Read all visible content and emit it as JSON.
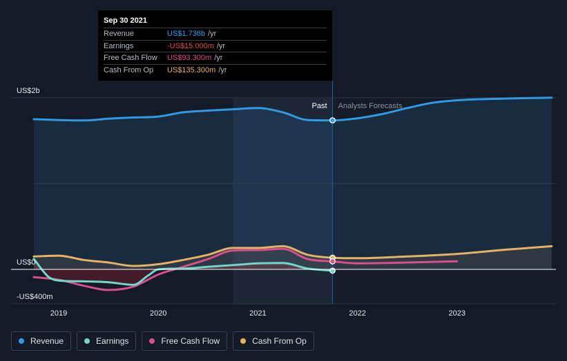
{
  "tooltip": {
    "date": "Sep 30 2021",
    "rows": [
      {
        "label": "Revenue",
        "value": "US$1.736b",
        "unit": "/yr",
        "color": "#2f9be6"
      },
      {
        "label": "Earnings",
        "value": "-US$15.000m",
        "unit": "/yr",
        "color": "#e24c4c"
      },
      {
        "label": "Free Cash Flow",
        "value": "US$93.300m",
        "unit": "/yr",
        "color": "#d84f8b"
      },
      {
        "label": "Cash From Op",
        "value": "US$135.300m",
        "unit": "/yr",
        "color": "#e8b164"
      }
    ]
  },
  "labels": {
    "past": "Past",
    "forecast": "Analysts Forecasts"
  },
  "legend": [
    {
      "label": "Revenue",
      "color": "#2f9be6"
    },
    {
      "label": "Earnings",
      "color": "#6fd8c9"
    },
    {
      "label": "Free Cash Flow",
      "color": "#d84f8b"
    },
    {
      "label": "Cash From Op",
      "color": "#e8b164"
    }
  ],
  "chart_data": {
    "type": "line",
    "title": "",
    "xlabel": "",
    "ylabel": "",
    "y_unit": "US$ millions",
    "xlim": [
      2018.75,
      2023.95
    ],
    "ylim": [
      -400,
      2000
    ],
    "y_ticks": [
      {
        "value": 2000,
        "label": "US$2b"
      },
      {
        "value": 0,
        "label": "US$0"
      },
      {
        "value": -400,
        "label": "-US$400m"
      }
    ],
    "x_ticks": [
      {
        "value": 2019,
        "label": "2019"
      },
      {
        "value": 2020,
        "label": "2020"
      },
      {
        "value": 2021,
        "label": "2021"
      },
      {
        "value": 2022,
        "label": "2022"
      },
      {
        "value": 2023,
        "label": "2023"
      }
    ],
    "past_end": 2021.75,
    "highlight_range": [
      2020.75,
      2021.75
    ],
    "series": [
      {
        "name": "Revenue",
        "color": "#2f9be6",
        "fill": true,
        "x": [
          2018.75,
          2019.0,
          2019.25,
          2019.5,
          2019.75,
          2020.0,
          2020.25,
          2020.5,
          2020.75,
          2021.0,
          2021.25,
          2021.5,
          2021.75,
          2022.0,
          2022.25,
          2022.5,
          2022.75,
          2023.0,
          2023.5,
          2023.95
        ],
        "values": [
          1750,
          1740,
          1735,
          1755,
          1770,
          1780,
          1830,
          1850,
          1865,
          1880,
          1830,
          1740,
          1736,
          1760,
          1810,
          1880,
          1940,
          1970,
          1990,
          2000
        ]
      },
      {
        "name": "Cash From Op",
        "color": "#e8b164",
        "fill": true,
        "x": [
          2018.75,
          2019.0,
          2019.25,
          2019.5,
          2019.75,
          2020.0,
          2020.25,
          2020.5,
          2020.75,
          2021.0,
          2021.25,
          2021.5,
          2021.75,
          2022.0,
          2022.5,
          2023.0,
          2023.5,
          2023.95
        ],
        "values": [
          150,
          160,
          110,
          80,
          40,
          60,
          110,
          170,
          250,
          250,
          270,
          170,
          135.3,
          130,
          150,
          180,
          230,
          270
        ]
      },
      {
        "name": "Free Cash Flow",
        "color": "#d84f8b",
        "fill": false,
        "x": [
          2018.75,
          2019.0,
          2019.25,
          2019.5,
          2019.75,
          2020.0,
          2020.25,
          2020.5,
          2020.75,
          2021.0,
          2021.25,
          2021.5,
          2021.75,
          2022.0,
          2022.5,
          2023.0
        ],
        "values": [
          -90,
          -120,
          -190,
          -240,
          -200,
          -60,
          30,
          120,
          220,
          225,
          240,
          120,
          93.3,
          70,
          80,
          95
        ]
      },
      {
        "name": "Earnings",
        "color": "#6fd8c9",
        "fill": false,
        "x": [
          2018.75,
          2018.9,
          2019.0,
          2019.25,
          2019.5,
          2019.75,
          2019.9,
          2020.0,
          2020.25,
          2020.5,
          2020.75,
          2021.0,
          2021.25,
          2021.5,
          2021.75
        ],
        "values": [
          120,
          -90,
          -130,
          -140,
          -150,
          -180,
          -70,
          0,
          10,
          30,
          50,
          70,
          75,
          10,
          -15
        ]
      }
    ]
  }
}
